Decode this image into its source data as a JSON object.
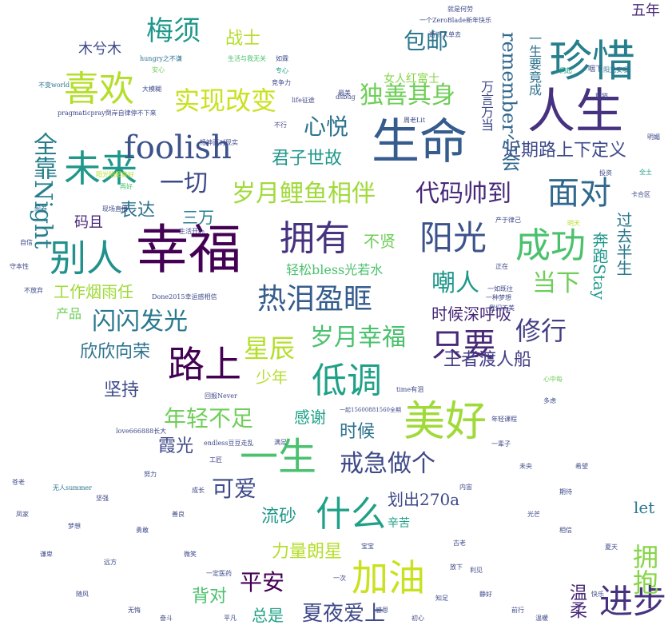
{
  "words": [
    {
      "text": "人生",
      "color": "#46327e"
    },
    {
      "text": "幸福",
      "color": "#440154"
    },
    {
      "text": "生命",
      "color": "#365c8d"
    },
    {
      "text": "珍惜",
      "color": "#277f8e"
    },
    {
      "text": "喜欢",
      "color": "#b5de2b"
    },
    {
      "text": "拥有",
      "color": "#46327e"
    },
    {
      "text": "阳光",
      "color": "#3b528b"
    },
    {
      "text": "成功",
      "color": "#4ac16d"
    },
    {
      "text": "美好",
      "color": "#a0da39"
    },
    {
      "text": "未来",
      "color": "#1f988b"
    },
    {
      "text": "别人",
      "color": "#21918c"
    },
    {
      "text": "面对",
      "color": "#31688e"
    },
    {
      "text": "foolish",
      "color": "#3b528b"
    },
    {
      "text": "路上",
      "color": "#440154"
    },
    {
      "text": "低调",
      "color": "#1fa187"
    },
    {
      "text": "一生",
      "color": "#4ac16d"
    },
    {
      "text": "加油",
      "color": "#cae11f"
    },
    {
      "text": "什么",
      "color": "#1fa187"
    },
    {
      "text": "进步",
      "color": "#46327e"
    },
    {
      "text": "实现改变",
      "color": "#cae11f"
    },
    {
      "text": "热泪盈眶",
      "color": "#365c8d"
    },
    {
      "text": "岁月鲤鱼相伴",
      "color": "#a0da39"
    },
    {
      "text": "代码帅到",
      "color": "#482878"
    },
    {
      "text": "独善其身",
      "color": "#6ece58"
    },
    {
      "text": "全靠Night",
      "color": "#277f8e"
    },
    {
      "text": "梅须",
      "color": "#1f988b"
    },
    {
      "text": "只要",
      "color": "#482878"
    },
    {
      "text": "修行",
      "color": "#433e85"
    },
    {
      "text": "岁月幸福",
      "color": "#4ac16d"
    },
    {
      "text": "闪闪发光",
      "color": "#2a788e"
    },
    {
      "text": "星辰",
      "color": "#b5de2b"
    },
    {
      "text": "年轻不足",
      "color": "#6ece58"
    },
    {
      "text": "戒急做个",
      "color": "#3e4989"
    },
    {
      "text": "心悦",
      "color": "#2c728e"
    },
    {
      "text": "一切",
      "color": "#3e4989"
    },
    {
      "text": "君子世故",
      "color": "#1f988b"
    },
    {
      "text": "嘲人",
      "color": "#1f988b"
    },
    {
      "text": "当下",
      "color": "#6ece58"
    },
    {
      "text": "包邮",
      "color": "#2a788e"
    },
    {
      "text": "remember心会",
      "color": "#31688e"
    },
    {
      "text": "近期路上下定义",
      "color": "#3e4989"
    },
    {
      "text": "时候深呼吸",
      "color": "#482878"
    },
    {
      "text": "王者渡人船",
      "color": "#433e85"
    },
    {
      "text": "欣欣向荣",
      "color": "#2c728e"
    },
    {
      "text": "坚持",
      "color": "#3e4989"
    },
    {
      "text": "表达",
      "color": "#2c728e"
    },
    {
      "text": "三万",
      "color": "#277f8e"
    },
    {
      "text": "码且",
      "color": "#482878"
    },
    {
      "text": "工作烟雨任",
      "color": "#a0da39"
    },
    {
      "text": "不贤",
      "color": "#6ece58"
    },
    {
      "text": "轻松bless光若水",
      "color": "#4ac16d"
    },
    {
      "text": "奔跑Stay",
      "color": "#1f988b"
    },
    {
      "text": "过去半生",
      "color": "#2a788e"
    },
    {
      "text": "拥抱",
      "color": "#86d549"
    },
    {
      "text": "平安",
      "color": "#440154"
    },
    {
      "text": "夏夜爱上",
      "color": "#3e4989"
    },
    {
      "text": "力量朗星",
      "color": "#b5de2b"
    },
    {
      "text": "背对",
      "color": "#4ac16d"
    },
    {
      "text": "总是",
      "color": "#1fa187"
    },
    {
      "text": "流砂",
      "color": "#1f988b"
    },
    {
      "text": "可爱",
      "color": "#3e4989"
    },
    {
      "text": "霞光",
      "color": "#3e4989"
    },
    {
      "text": "感谢",
      "color": "#1fa187"
    },
    {
      "text": "时候",
      "color": "#2c728e"
    },
    {
      "text": "少年",
      "color": "#b5de2b"
    },
    {
      "text": "划出270a",
      "color": "#3e4989"
    },
    {
      "text": "let",
      "color": "#2a788e"
    },
    {
      "text": "温柔",
      "color": "#482878"
    },
    {
      "text": "战士",
      "color": "#b5de2b"
    },
    {
      "text": "木兮木",
      "color": "#3e4989"
    },
    {
      "text": "女人红富士",
      "color": "#86d549"
    },
    {
      "text": "五年",
      "color": "#482878"
    },
    {
      "text": "万言万当",
      "color": "#3e4989"
    },
    {
      "text": "一生要竟成",
      "color": "#2c728e"
    },
    {
      "text": "产品",
      "color": "#6ece58"
    },
    {
      "text": "辛苦",
      "color": "#1fa187"
    },
    {
      "text": "pragmaticpray倒岸自律停不下来",
      "color": "#3e4989"
    },
    {
      "text": "hungry之不谦",
      "color": "#2c728e"
    },
    {
      "text": "life征途",
      "color": "#3e4989"
    },
    {
      "text": "Done2015幸运感相信",
      "color": "#3e4989"
    },
    {
      "text": "endless豆豆走乱",
      "color": "#3e4989"
    },
    {
      "text": "love666888长大",
      "color": "#3e4989"
    },
    {
      "text": "一起15600881560全期",
      "color": "#3e4989"
    },
    {
      "text": "一个ZeroBlade新年快乐",
      "color": "#3e4989"
    },
    {
      "text": "time有泪",
      "color": "#3e4989"
    },
    {
      "text": "回报Never",
      "color": "#3e4989"
    },
    {
      "text": "无人summer",
      "color": "#2c728e"
    },
    {
      "text": "就是何劳",
      "color": "#3e4989"
    },
    {
      "text": "逝下人单去",
      "color": "#3e4989"
    },
    {
      "text": "阳光安暖",
      "color": "#2c728e"
    },
    {
      "text": "咽下",
      "color": "#3e4989"
    },
    {
      "text": "竞争力",
      "color": "#3e4989"
    },
    {
      "text": "大模糊",
      "color": "#3e4989"
    },
    {
      "text": "安心",
      "color": "#6ece58"
    },
    {
      "text": "不变world",
      "color": "#2c728e"
    },
    {
      "text": "生活与我无关",
      "color": "#4ac16d"
    },
    {
      "text": "如霖",
      "color": "#3e4989"
    },
    {
      "text": "专心",
      "color": "#1fa187"
    },
    {
      "text": "现场直播",
      "color": "#3e4989"
    },
    {
      "text": "阳光明媚美好",
      "color": "#b5de2b"
    },
    {
      "text": "生活开心",
      "color": "#3e4989"
    },
    {
      "text": "阅卷",
      "color": "#2c728e"
    },
    {
      "text": "再好",
      "color": "#4ac16d"
    },
    {
      "text": "dsbug",
      "color": "#3e4989"
    },
    {
      "text": "周老Lit",
      "color": "#3e4989"
    },
    {
      "text": "最美",
      "color": "#3e4989"
    },
    {
      "text": "不行",
      "color": "#3e4989"
    },
    {
      "text": "畅神面对现实",
      "color": "#3e4989"
    },
    {
      "text": "宝宝",
      "color": "#3e4989"
    },
    {
      "text": "一次",
      "color": "#3e4989"
    },
    {
      "text": "夏天",
      "color": "#3e4989"
    },
    {
      "text": "利见",
      "color": "#3e4989"
    },
    {
      "text": "放下",
      "color": "#3e4989"
    },
    {
      "text": "一定医药",
      "color": "#3e4989"
    },
    {
      "text": "我们不美",
      "color": "#3e4989"
    },
    {
      "text": "年轻课程",
      "color": "#3e4989"
    },
    {
      "text": "一辈子",
      "color": "#3e4989"
    },
    {
      "text": "多虑",
      "color": "#3e4989"
    },
    {
      "text": "古老",
      "color": "#3e4989"
    },
    {
      "text": "内宙",
      "color": "#3e4989"
    },
    {
      "text": "心中每",
      "color": "#6ece58"
    },
    {
      "text": "满足",
      "color": "#3e4989"
    },
    {
      "text": "工匠",
      "color": "#3e4989"
    },
    {
      "text": "一如既往",
      "color": "#3e4989"
    },
    {
      "text": "明媚",
      "color": "#3e4989"
    },
    {
      "text": "侗起",
      "color": "#1fa187"
    },
    {
      "text": "全土",
      "color": "#1fa187"
    },
    {
      "text": "卡合区",
      "color": "#3e4989"
    },
    {
      "text": "投资",
      "color": "#3e4989"
    },
    {
      "text": "产于律己",
      "color": "#3e4989"
    },
    {
      "text": "明天",
      "color": "#b5de2b"
    },
    {
      "text": "正在",
      "color": "#3e4989"
    },
    {
      "text": "一种梦想",
      "color": "#3e4989"
    },
    {
      "text": "熊猫",
      "color": "#3e4989"
    },
    {
      "text": "快乐",
      "color": "#3e4989"
    },
    {
      "text": "期待",
      "color": "#3e4989"
    },
    {
      "text": "苍老",
      "color": "#3e4989"
    },
    {
      "text": "凤家",
      "color": "#3e4989"
    },
    {
      "text": "守本性",
      "color": "#3e4989"
    },
    {
      "text": "不放弃",
      "color": "#3e4989"
    },
    {
      "text": "自信",
      "color": "#3e4989"
    },
    {
      "text": "谦卑",
      "color": "#3e4989"
    },
    {
      "text": "随风",
      "color": "#3e4989"
    },
    {
      "text": "无悔",
      "color": "#3e4989"
    },
    {
      "text": "奋斗",
      "color": "#3e4989"
    },
    {
      "text": "初心",
      "color": "#3e4989"
    },
    {
      "text": "温暖",
      "color": "#3e4989"
    },
    {
      "text": "静好",
      "color": "#3e4989"
    },
    {
      "text": "前行",
      "color": "#3e4989"
    },
    {
      "text": "知足",
      "color": "#3e4989"
    },
    {
      "text": "感恩",
      "color": "#3e4989"
    },
    {
      "text": "平凡",
      "color": "#3e4989"
    },
    {
      "text": "远方",
      "color": "#3e4989"
    },
    {
      "text": "梦想",
      "color": "#3e4989"
    },
    {
      "text": "坚强",
      "color": "#3e4989"
    },
    {
      "text": "勇敢",
      "color": "#3e4989"
    },
    {
      "text": "微笑",
      "color": "#3e4989"
    },
    {
      "text": "善良",
      "color": "#3e4989"
    },
    {
      "text": "努力",
      "color": "#3e4989"
    },
    {
      "text": "成长",
      "color": "#3e4989"
    },
    {
      "text": "相信",
      "color": "#3e4989"
    },
    {
      "text": "希望",
      "color": "#3e4989"
    },
    {
      "text": "未央",
      "color": "#3e4989"
    },
    {
      "text": "光芒",
      "color": "#3e4989"
    }
  ]
}
